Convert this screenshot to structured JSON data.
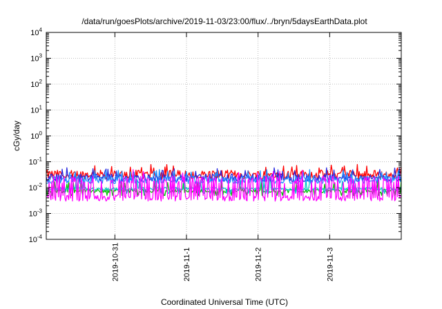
{
  "chart_data": {
    "type": "line",
    "title": "/data/run/goesPlots/archive/2019-11-03/23:00/flux/../bryn/5daysEarthData.plot",
    "xlabel": "Coordinated Universal Time (UTC)",
    "ylabel": "cGy/day",
    "y_scale": "log",
    "ylim": [
      0.0001,
      10000
    ],
    "y_ticks": [
      {
        "exp": "-4",
        "value": 0.0001
      },
      {
        "exp": "-3",
        "value": 0.001
      },
      {
        "exp": "-2",
        "value": 0.01
      },
      {
        "exp": "-1",
        "value": 0.1
      },
      {
        "exp": "0",
        "value": 1
      },
      {
        "exp": "1",
        "value": 10
      },
      {
        "exp": "2",
        "value": 100
      },
      {
        "exp": "3",
        "value": 1000
      },
      {
        "exp": "4",
        "value": 10000
      }
    ],
    "y_tick_base": "10",
    "xlim": [
      "2019-10-30T01:00",
      "2019-11-04T00:00"
    ],
    "x_ticks": [
      {
        "label": "2019-10-31",
        "value": "2019-10-31T00:00"
      },
      {
        "label": "2019-11-1",
        "value": "2019-11-01T00:00"
      },
      {
        "label": "2019-11-2",
        "value": "2019-11-02T00:00"
      },
      {
        "label": "2019-11-3",
        "value": "2019-11-03T00:00"
      }
    ],
    "grid": true,
    "series": [
      {
        "color": "#ff0000",
        "base": 0.032,
        "spread": 0.35,
        "low": 0.025
      },
      {
        "color": "#00c000",
        "base": 0.0075,
        "spread": 0.15,
        "low": 0.005
      },
      {
        "color": "#00c8c8",
        "base": 0.009,
        "spread": 0.12,
        "low": 0.006
      },
      {
        "color": "#2a2ae0",
        "base": 0.024,
        "spread": 0.3,
        "low": 0.018
      },
      {
        "color": "#1e90ff",
        "base": 0.02,
        "spread": 0.3,
        "low": 0.015
      },
      {
        "color": "#ff00ff",
        "base": 0.02,
        "spread": 0.3,
        "low": 0.004
      }
    ]
  }
}
